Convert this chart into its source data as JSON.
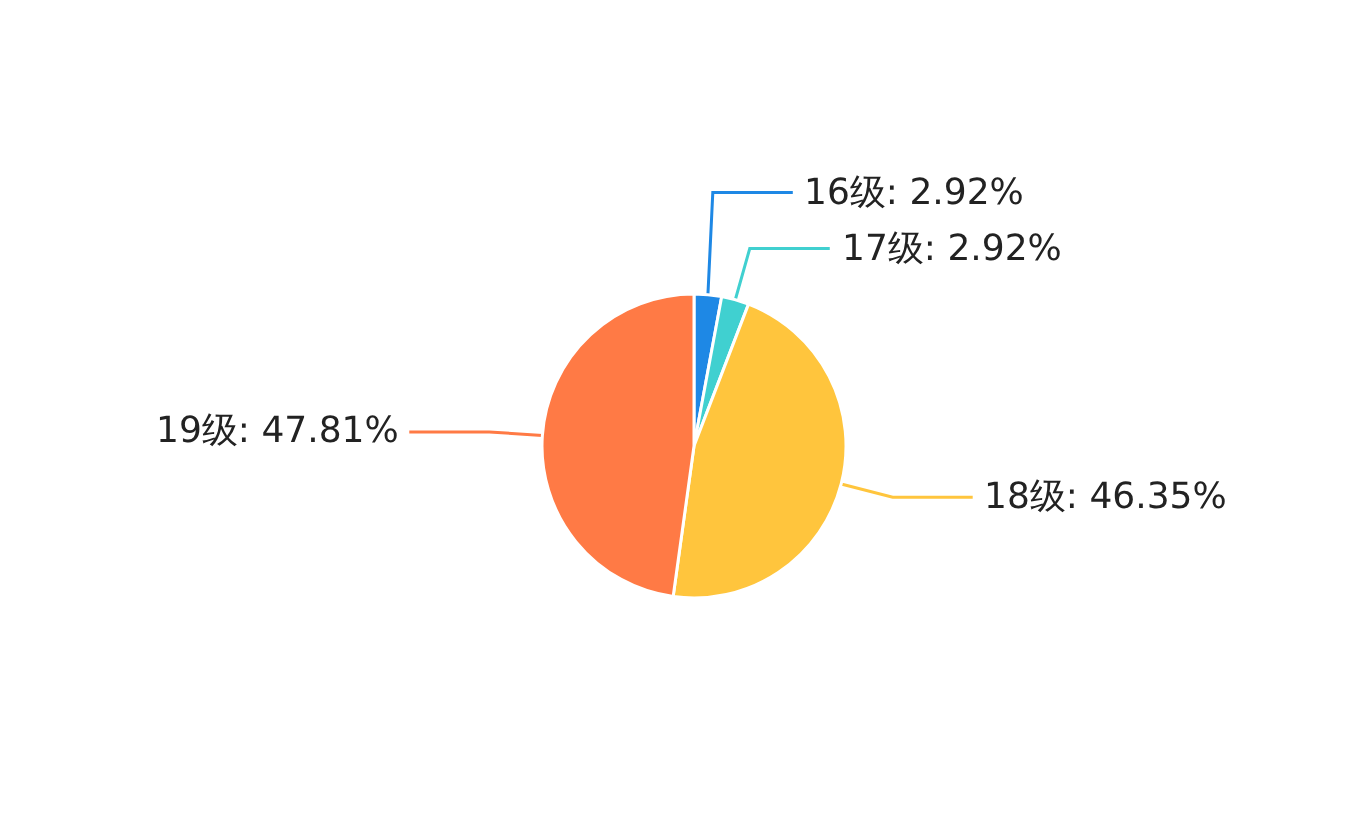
{
  "chart_data": {
    "type": "pie",
    "categories": [
      "16级",
      "17级",
      "18级",
      "19级"
    ],
    "values": [
      2.92,
      2.92,
      46.35,
      47.81
    ],
    "value_labels": [
      "2.92%",
      "2.92%",
      "46.35%",
      "47.81%"
    ],
    "colors": [
      "#1e88e5",
      "#40d0d0",
      "#ffc53d",
      "#ff7a45"
    ],
    "legend": false
  }
}
